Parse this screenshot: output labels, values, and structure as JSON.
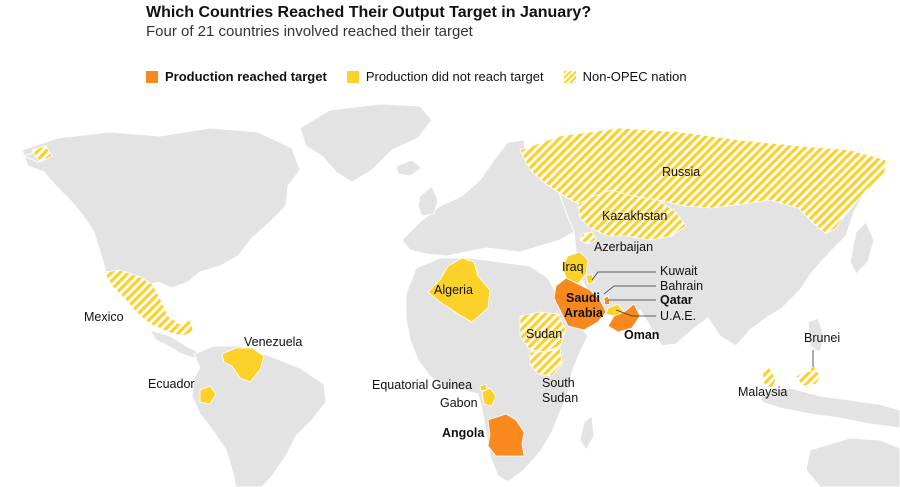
{
  "title": "Which Countries Reached Their Output Target in January?",
  "subtitle": "Four of 21 countries involved reached their target",
  "legend": {
    "reached": "Production reached target",
    "not_reached": "Production did not reach target",
    "non_opec": "Non-OPEC nation"
  },
  "colors": {
    "reached": "#f7891f",
    "not_reached": "#fcd12a",
    "land": "#e3e3e3",
    "border": "#ffffff"
  },
  "countries": {
    "russia": "Russia",
    "kazakhstan": "Kazakhstan",
    "azerbaijan": "Azerbaijan",
    "iraq": "Iraq",
    "kuwait": "Kuwait",
    "bahrain": "Bahrain",
    "qatar": "Qatar",
    "uae": "U.A.E.",
    "oman": "Oman",
    "saudi_arabia_line1": "Saudi",
    "saudi_arabia_line2": "Arabia",
    "algeria": "Algeria",
    "sudan": "Sudan",
    "south_sudan_line1": "South",
    "south_sudan_line2": "Sudan",
    "mexico": "Mexico",
    "venezuela": "Venezuela",
    "ecuador": "Ecuador",
    "equatorial_guinea": "Equatorial Guinea",
    "gabon": "Gabon",
    "angola": "Angola",
    "malaysia": "Malaysia",
    "brunei": "Brunei"
  },
  "status": {
    "reached": [
      "Saudi Arabia",
      "Qatar",
      "Oman",
      "Angola"
    ],
    "not_reached": [
      "Iraq",
      "Kuwait",
      "U.A.E.",
      "Algeria",
      "Venezuela",
      "Ecuador",
      "Equatorial Guinea",
      "Gabon"
    ],
    "non_opec": [
      "Russia",
      "Kazakhstan",
      "Azerbaijan",
      "Mexico",
      "Sudan",
      "South Sudan",
      "Malaysia",
      "Brunei",
      "Bahrain"
    ]
  }
}
